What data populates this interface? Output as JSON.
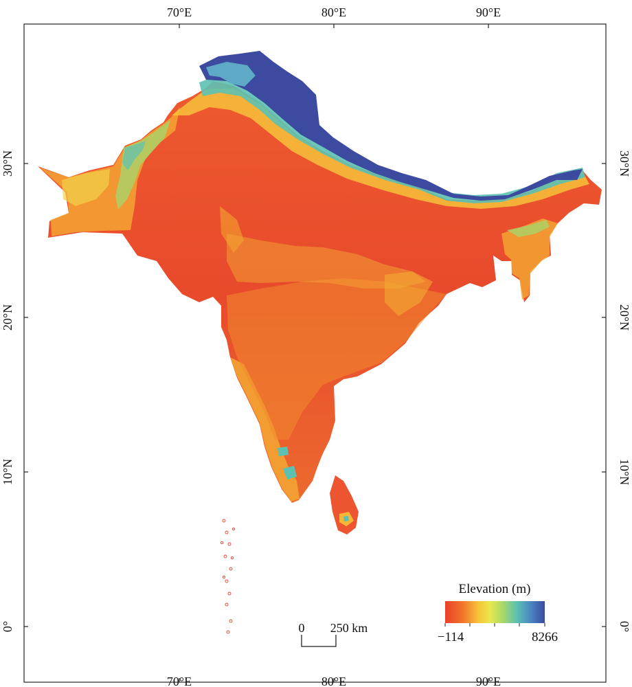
{
  "map": {
    "region": "South Asia",
    "top_axis_labels": [
      "70°E",
      "80°E",
      "90°E"
    ],
    "bottom_axis_labels": [
      "70°E",
      "80°E",
      "90°E"
    ],
    "left_axis_labels": [
      "30°N",
      "20°N",
      "10°N",
      "0°"
    ],
    "right_axis_labels": [
      "30°N",
      "20°N",
      "10°N",
      "0°"
    ]
  },
  "legend": {
    "title": "Elevation (m)",
    "min_label": "−114",
    "max_label": "8266",
    "colors": [
      "#e8402a",
      "#f2762b",
      "#f7c23a",
      "#e8e84a",
      "#a9d86a",
      "#5cc1b2",
      "#4a86c2",
      "#3c4aa0"
    ]
  },
  "scale_bar": {
    "zero_label": "0",
    "distance_label": "250 km"
  },
  "colors": {
    "lowland": "#e8452c",
    "upland": "#f0842d",
    "hills": "#f5c640",
    "mountains": "#5cc1b2",
    "high_peaks": "#3c4aa0"
  }
}
